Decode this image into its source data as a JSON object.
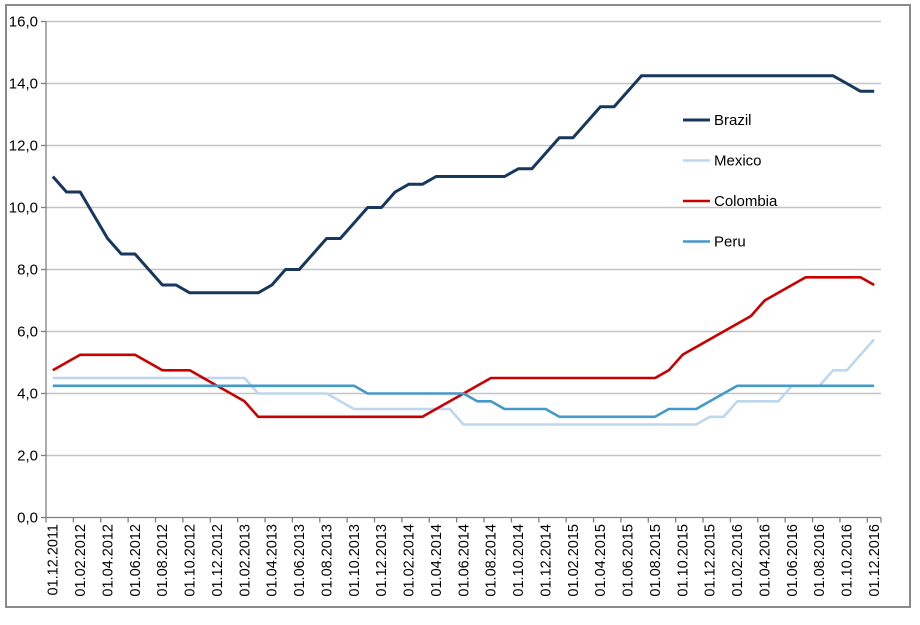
{
  "chart_data": {
    "type": "line",
    "title": "",
    "xlabel": "",
    "ylabel": "",
    "n_points": 61,
    "x_start": "01.12.2011",
    "x_end": "01.12.2016",
    "x_label_interval_months": 2,
    "x_tick_labels": [
      "01.12.2011",
      "01.02.2012",
      "01.04.2012",
      "01.06.2012",
      "01.08.2012",
      "01.10.2012",
      "01.12.2012",
      "01.02.2013",
      "01.04.2013",
      "01.06.2013",
      "01.08.2013",
      "01.10.2013",
      "01.12.2013",
      "01.02.2014",
      "01.04.2014",
      "01.06.2014",
      "01.08.2014",
      "01.10.2014",
      "01.12.2014",
      "01.02.2015",
      "01.04.2015",
      "01.06.2015",
      "01.08.2015",
      "01.10.2015",
      "01.12.2015",
      "01.02.2016",
      "01.04.2016",
      "01.06.2016",
      "01.08.2016",
      "01.10.2016",
      "01.12.2016"
    ],
    "ylim": [
      0,
      16
    ],
    "y_tick_step": 2,
    "y_tick_labels": [
      "0,0",
      "2,0",
      "4,0",
      "6,0",
      "8,0",
      "10,0",
      "12,0",
      "14,0",
      "16,0"
    ],
    "grid": "horizontal",
    "legend_position": "middle-right",
    "legend_entries": [
      "Brazil",
      "Mexico",
      "Colombia",
      "Peru"
    ],
    "series": [
      {
        "name": "Brazil",
        "color": "#17375D",
        "values": [
          11.0,
          10.5,
          10.5,
          9.75,
          9.0,
          8.5,
          8.5,
          8.0,
          7.5,
          7.5,
          7.25,
          7.25,
          7.25,
          7.25,
          7.25,
          7.25,
          7.5,
          8.0,
          8.0,
          8.5,
          9.0,
          9.0,
          9.5,
          10.0,
          10.0,
          10.5,
          10.75,
          10.75,
          11.0,
          11.0,
          11.0,
          11.0,
          11.0,
          11.0,
          11.25,
          11.25,
          11.75,
          12.25,
          12.25,
          12.75,
          13.25,
          13.25,
          13.75,
          14.25,
          14.25,
          14.25,
          14.25,
          14.25,
          14.25,
          14.25,
          14.25,
          14.25,
          14.25,
          14.25,
          14.25,
          14.25,
          14.25,
          14.25,
          14.0,
          13.75,
          13.75
        ]
      },
      {
        "name": "Mexico",
        "color": "#BDD7EE",
        "values": [
          4.5,
          4.5,
          4.5,
          4.5,
          4.5,
          4.5,
          4.5,
          4.5,
          4.5,
          4.5,
          4.5,
          4.5,
          4.5,
          4.5,
          4.5,
          4.0,
          4.0,
          4.0,
          4.0,
          4.0,
          4.0,
          3.75,
          3.5,
          3.5,
          3.5,
          3.5,
          3.5,
          3.5,
          3.5,
          3.5,
          3.0,
          3.0,
          3.0,
          3.0,
          3.0,
          3.0,
          3.0,
          3.0,
          3.0,
          3.0,
          3.0,
          3.0,
          3.0,
          3.0,
          3.0,
          3.0,
          3.0,
          3.0,
          3.25,
          3.25,
          3.75,
          3.75,
          3.75,
          3.75,
          4.25,
          4.25,
          4.25,
          4.75,
          4.75,
          5.25,
          5.75
        ]
      },
      {
        "name": "Colombia",
        "color": "#C90000",
        "values": [
          4.75,
          5.0,
          5.25,
          5.25,
          5.25,
          5.25,
          5.25,
          5.0,
          4.75,
          4.75,
          4.75,
          4.5,
          4.25,
          4.0,
          3.75,
          3.25,
          3.25,
          3.25,
          3.25,
          3.25,
          3.25,
          3.25,
          3.25,
          3.25,
          3.25,
          3.25,
          3.25,
          3.25,
          3.5,
          3.75,
          4.0,
          4.25,
          4.5,
          4.5,
          4.5,
          4.5,
          4.5,
          4.5,
          4.5,
          4.5,
          4.5,
          4.5,
          4.5,
          4.5,
          4.5,
          4.75,
          5.25,
          5.5,
          5.75,
          6.0,
          6.25,
          6.5,
          7.0,
          7.25,
          7.5,
          7.75,
          7.75,
          7.75,
          7.75,
          7.75,
          7.5
        ]
      },
      {
        "name": "Peru",
        "color": "#4599C8",
        "values": [
          4.25,
          4.25,
          4.25,
          4.25,
          4.25,
          4.25,
          4.25,
          4.25,
          4.25,
          4.25,
          4.25,
          4.25,
          4.25,
          4.25,
          4.25,
          4.25,
          4.25,
          4.25,
          4.25,
          4.25,
          4.25,
          4.25,
          4.25,
          4.0,
          4.0,
          4.0,
          4.0,
          4.0,
          4.0,
          4.0,
          4.0,
          3.75,
          3.75,
          3.5,
          3.5,
          3.5,
          3.5,
          3.25,
          3.25,
          3.25,
          3.25,
          3.25,
          3.25,
          3.25,
          3.25,
          3.5,
          3.5,
          3.5,
          3.75,
          4.0,
          4.25,
          4.25,
          4.25,
          4.25,
          4.25,
          4.25,
          4.25,
          4.25,
          4.25,
          4.25,
          4.25
        ]
      }
    ]
  },
  "colors": {
    "background": "#FFFFFF",
    "frame": "#8A8A8A",
    "grid": "#C4C4C4",
    "axis": "#7F7F7F",
    "tick": "#7F7F7F",
    "label_text": "#000000",
    "legend_text": "#000000"
  }
}
